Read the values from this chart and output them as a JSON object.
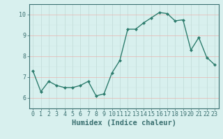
{
  "x": [
    0,
    1,
    2,
    3,
    4,
    5,
    6,
    7,
    8,
    9,
    10,
    11,
    12,
    13,
    14,
    15,
    16,
    17,
    18,
    19,
    20,
    21,
    22,
    23
  ],
  "y": [
    7.3,
    6.3,
    6.8,
    6.6,
    6.5,
    6.5,
    6.6,
    6.8,
    6.1,
    6.2,
    7.2,
    7.8,
    9.3,
    9.3,
    9.6,
    9.85,
    10.1,
    10.05,
    9.7,
    9.75,
    8.3,
    8.9,
    7.95,
    7.6
  ],
  "line_color": "#2e7d6e",
  "marker": "D",
  "marker_size": 2.0,
  "line_width": 1.0,
  "bg_color": "#d8f0ee",
  "grid_color": "#b8d4d0",
  "grid_color_minor": "#cce4e0",
  "xlabel": "Humidex (Indice chaleur)",
  "xlabel_fontsize": 7.5,
  "ylim": [
    5.5,
    10.5
  ],
  "xlim": [
    -0.5,
    23.5
  ],
  "yticks": [
    6,
    7,
    8,
    9,
    10
  ],
  "xticks": [
    0,
    1,
    2,
    3,
    4,
    5,
    6,
    7,
    8,
    9,
    10,
    11,
    12,
    13,
    14,
    15,
    16,
    17,
    18,
    19,
    20,
    21,
    22,
    23
  ],
  "tick_fontsize": 6.0,
  "spine_color": "#3a7070",
  "red_lines_y": [
    6,
    7,
    8,
    9,
    10
  ],
  "red_line_color": "#e8b4b0"
}
